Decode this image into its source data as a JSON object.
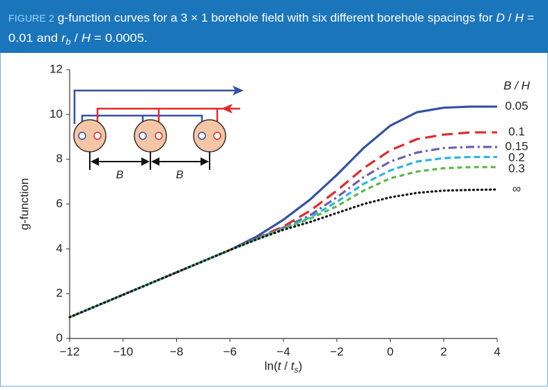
{
  "header": {
    "label": "FIGURE 2",
    "line1": [
      " g-function curves for a 3 × 1 borehole field with six different borehole spacings for ",
      "D",
      " / ",
      "H",
      " ="
    ],
    "line2": [
      "0.01 and ",
      "r",
      "b",
      " / ",
      "H",
      " = 0.0005."
    ]
  },
  "inset": {
    "labels": [
      "B",
      "B"
    ]
  },
  "chart_data": {
    "type": "line",
    "ylabel": "g-function",
    "xlabel_parts": [
      "ln(",
      "t",
      " / ",
      "t",
      "s",
      ")"
    ],
    "legend_title": "B / H",
    "x": [
      -12,
      -11,
      -10,
      -9,
      -8,
      -7,
      -6,
      -5,
      -4,
      -3,
      -2,
      -1,
      0,
      1,
      2,
      3,
      4
    ],
    "xlim": [
      -12,
      4
    ],
    "ylim": [
      0,
      12
    ],
    "xticks": [
      {
        "value": -12,
        "label": "−12"
      },
      {
        "value": -10,
        "label": "−10"
      },
      {
        "value": -8,
        "label": "−8"
      },
      {
        "value": -6,
        "label": "−6"
      },
      {
        "value": -4,
        "label": "−4"
      },
      {
        "value": -2,
        "label": "−2"
      },
      0,
      2,
      4
    ],
    "yticks": [
      0,
      2,
      4,
      6,
      8,
      10,
      12
    ],
    "series": [
      {
        "name": "0.05",
        "color": "#3451a4",
        "values": [
          0.95,
          1.45,
          1.95,
          2.45,
          2.95,
          3.45,
          3.95,
          4.55,
          5.3,
          6.2,
          7.3,
          8.5,
          9.5,
          10.1,
          10.3,
          10.35,
          10.35
        ]
      },
      {
        "name": "0.1",
        "color": "#e02a2a",
        "values": [
          0.95,
          1.45,
          1.95,
          2.45,
          2.95,
          3.45,
          3.95,
          4.47,
          5.0,
          5.7,
          6.6,
          7.6,
          8.4,
          8.9,
          9.1,
          9.2,
          9.2
        ]
      },
      {
        "name": "0.15",
        "color": "#6d5fae",
        "values": [
          0.95,
          1.45,
          1.95,
          2.45,
          2.95,
          3.45,
          3.95,
          4.45,
          4.95,
          5.5,
          6.3,
          7.2,
          7.9,
          8.3,
          8.5,
          8.55,
          8.55
        ]
      },
      {
        "name": "0.2",
        "color": "#2bb5e4",
        "values": [
          0.95,
          1.45,
          1.95,
          2.45,
          2.95,
          3.45,
          3.95,
          4.44,
          4.92,
          5.4,
          6.1,
          6.9,
          7.5,
          7.9,
          8.05,
          8.1,
          8.1
        ]
      },
      {
        "name": "0.3",
        "color": "#5cb848",
        "values": [
          0.95,
          1.45,
          1.95,
          2.45,
          2.95,
          3.45,
          3.95,
          4.43,
          4.9,
          5.35,
          5.9,
          6.6,
          7.15,
          7.45,
          7.6,
          7.65,
          7.65
        ]
      },
      {
        "name": "∞",
        "color": "#111111",
        "values": [
          0.95,
          1.45,
          1.95,
          2.45,
          2.95,
          3.45,
          3.95,
          4.42,
          4.85,
          5.2,
          5.6,
          6.0,
          6.3,
          6.5,
          6.6,
          6.63,
          6.65
        ]
      }
    ]
  }
}
